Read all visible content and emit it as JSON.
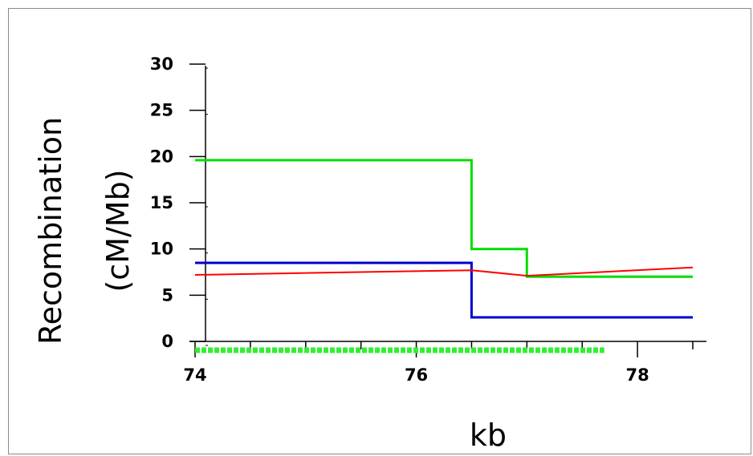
{
  "chart_data": {
    "type": "line",
    "xlabel": "kb",
    "ylabel_line1": "Recombination",
    "ylabel_line2": "(cM/Mb)",
    "xlim": [
      74,
      78.5
    ],
    "ylim": [
      0,
      30
    ],
    "x_ticks": [
      74,
      76,
      78
    ],
    "y_ticks": [
      0,
      5,
      10,
      15,
      20,
      25,
      30
    ],
    "grid": false,
    "legend": "none",
    "series": [
      {
        "color": "#00dd00",
        "step": true,
        "points": [
          [
            74,
            19.6
          ],
          [
            76.5,
            19.6
          ],
          [
            76.5,
            10
          ],
          [
            77,
            10
          ],
          [
            77,
            7
          ],
          [
            78.5,
            7
          ]
        ]
      },
      {
        "color": "#0000cc",
        "step": true,
        "points": [
          [
            74,
            8.5
          ],
          [
            76.5,
            8.5
          ],
          [
            76.5,
            2.6
          ],
          [
            78.5,
            2.6
          ]
        ]
      },
      {
        "color": "#ff0000",
        "step": false,
        "points": [
          [
            74,
            7.2
          ],
          [
            76.5,
            7.7
          ],
          [
            77,
            7.1
          ],
          [
            78.5,
            8
          ]
        ]
      }
    ],
    "marker_strip": {
      "color": "#33ee33",
      "y": -1,
      "x_start": 74,
      "x_end": 77.7
    }
  }
}
